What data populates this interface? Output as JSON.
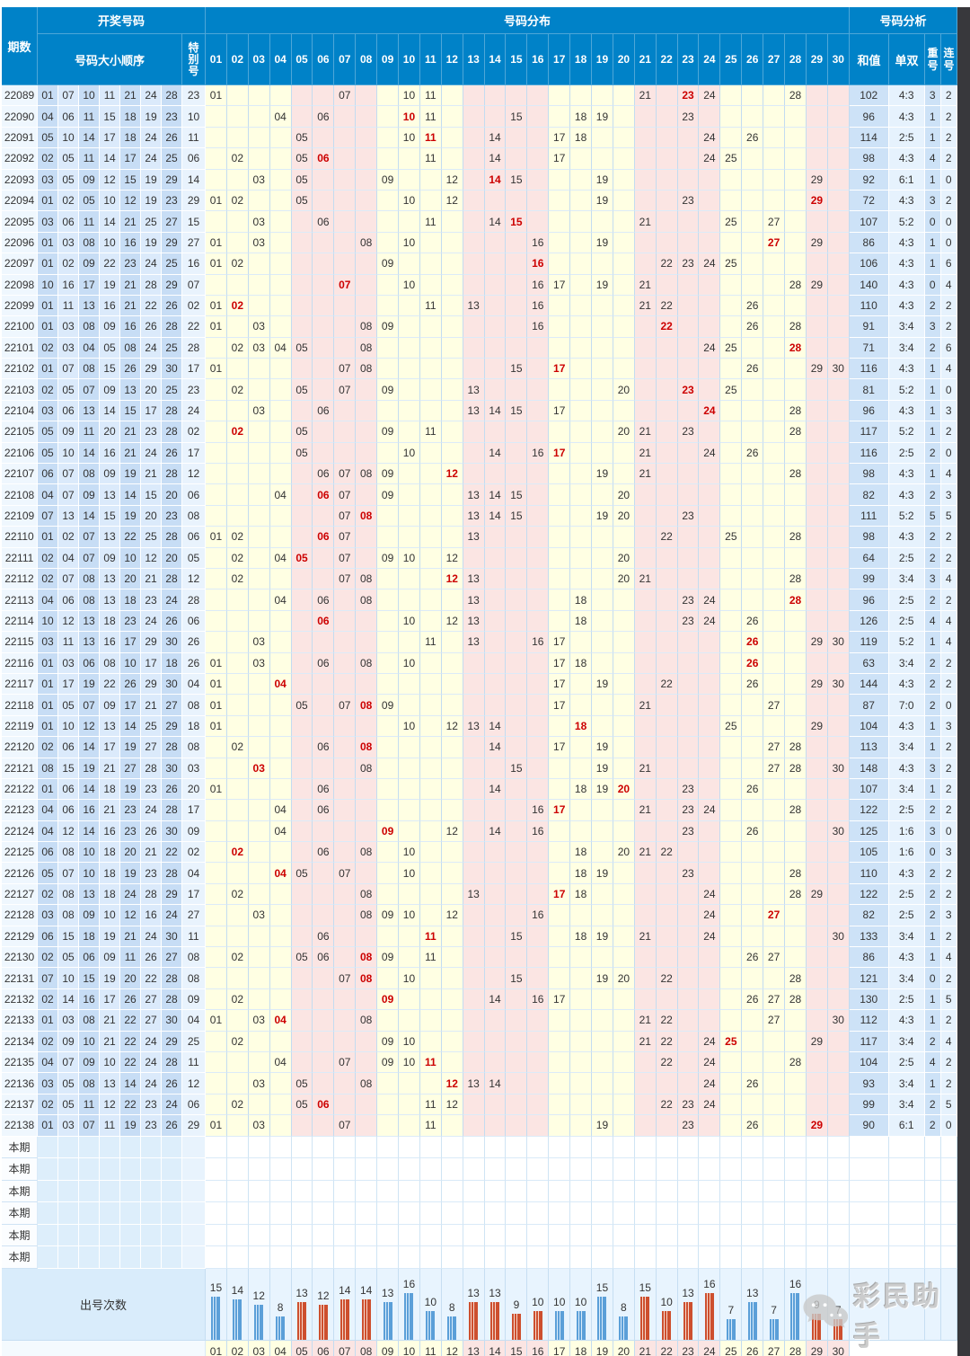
{
  "header": {
    "qishu": "期数",
    "kaijiang": "开奖号码",
    "daxiao": "号码大小顺序",
    "tebie": "特\n别\n号",
    "fenbu": "号码分布",
    "fenxi": "号码分析",
    "hezhi": "和值",
    "danshuang": "单双",
    "chonghao": "重\n号",
    "lianhao": "连\n号"
  },
  "dist_headers": [
    "01",
    "02",
    "03",
    "04",
    "05",
    "06",
    "07",
    "08",
    "09",
    "10",
    "11",
    "12",
    "13",
    "14",
    "15",
    "16",
    "17",
    "18",
    "19",
    "20",
    "21",
    "22",
    "23",
    "24",
    "25",
    "26",
    "27",
    "28",
    "29",
    "30"
  ],
  "rows": [
    {
      "p": "22089",
      "n": [
        "01",
        "07",
        "10",
        "11",
        "21",
        "24",
        "28"
      ],
      "s": "23",
      "sum": "102",
      "oe": "4:3",
      "rep": "3",
      "con": "2"
    },
    {
      "p": "22090",
      "n": [
        "04",
        "06",
        "11",
        "15",
        "18",
        "19",
        "23"
      ],
      "s": "10",
      "sum": "96",
      "oe": "4:3",
      "rep": "1",
      "con": "2"
    },
    {
      "p": "22091",
      "n": [
        "05",
        "10",
        "14",
        "17",
        "18",
        "24",
        "26"
      ],
      "s": "11",
      "sum": "114",
      "oe": "2:5",
      "rep": "1",
      "con": "2"
    },
    {
      "p": "22092",
      "n": [
        "02",
        "05",
        "11",
        "14",
        "17",
        "24",
        "25"
      ],
      "s": "06",
      "sum": "98",
      "oe": "4:3",
      "rep": "4",
      "con": "2"
    },
    {
      "p": "22093",
      "n": [
        "03",
        "05",
        "09",
        "12",
        "15",
        "19",
        "29"
      ],
      "s": "14",
      "sum": "92",
      "oe": "6:1",
      "rep": "1",
      "con": "0"
    },
    {
      "p": "22094",
      "n": [
        "01",
        "02",
        "05",
        "10",
        "12",
        "19",
        "23"
      ],
      "s": "29",
      "sum": "72",
      "oe": "4:3",
      "rep": "3",
      "con": "2"
    },
    {
      "p": "22095",
      "n": [
        "03",
        "06",
        "11",
        "14",
        "21",
        "25",
        "27"
      ],
      "s": "15",
      "sum": "107",
      "oe": "5:2",
      "rep": "0",
      "con": "0"
    },
    {
      "p": "22096",
      "n": [
        "01",
        "03",
        "08",
        "10",
        "16",
        "19",
        "29"
      ],
      "s": "27",
      "sum": "86",
      "oe": "4:3",
      "rep": "1",
      "con": "0"
    },
    {
      "p": "22097",
      "n": [
        "01",
        "02",
        "09",
        "22",
        "23",
        "24",
        "25"
      ],
      "s": "16",
      "sum": "106",
      "oe": "4:3",
      "rep": "1",
      "con": "6"
    },
    {
      "p": "22098",
      "n": [
        "10",
        "16",
        "17",
        "19",
        "21",
        "28",
        "29"
      ],
      "s": "07",
      "sum": "140",
      "oe": "4:3",
      "rep": "0",
      "con": "4"
    },
    {
      "p": "22099",
      "n": [
        "01",
        "11",
        "13",
        "16",
        "21",
        "22",
        "26"
      ],
      "s": "02",
      "sum": "110",
      "oe": "4:3",
      "rep": "2",
      "con": "2"
    },
    {
      "p": "22100",
      "n": [
        "01",
        "03",
        "08",
        "09",
        "16",
        "26",
        "28"
      ],
      "s": "22",
      "sum": "91",
      "oe": "3:4",
      "rep": "3",
      "con": "2"
    },
    {
      "p": "22101",
      "n": [
        "02",
        "03",
        "04",
        "05",
        "08",
        "24",
        "25"
      ],
      "s": "28",
      "sum": "71",
      "oe": "3:4",
      "rep": "2",
      "con": "6"
    },
    {
      "p": "22102",
      "n": [
        "01",
        "07",
        "08",
        "15",
        "26",
        "29",
        "30"
      ],
      "s": "17",
      "sum": "116",
      "oe": "4:3",
      "rep": "1",
      "con": "4"
    },
    {
      "p": "22103",
      "n": [
        "02",
        "05",
        "07",
        "09",
        "13",
        "20",
        "25"
      ],
      "s": "23",
      "sum": "81",
      "oe": "5:2",
      "rep": "1",
      "con": "0"
    },
    {
      "p": "22104",
      "n": [
        "03",
        "06",
        "13",
        "14",
        "15",
        "17",
        "28"
      ],
      "s": "24",
      "sum": "96",
      "oe": "4:3",
      "rep": "1",
      "con": "3"
    },
    {
      "p": "22105",
      "n": [
        "05",
        "09",
        "11",
        "20",
        "21",
        "23",
        "28"
      ],
      "s": "02",
      "sum": "117",
      "oe": "5:2",
      "rep": "1",
      "con": "2"
    },
    {
      "p": "22106",
      "n": [
        "05",
        "10",
        "14",
        "16",
        "21",
        "24",
        "26"
      ],
      "s": "17",
      "sum": "116",
      "oe": "2:5",
      "rep": "2",
      "con": "0"
    },
    {
      "p": "22107",
      "n": [
        "06",
        "07",
        "08",
        "09",
        "19",
        "21",
        "28"
      ],
      "s": "12",
      "sum": "98",
      "oe": "4:3",
      "rep": "1",
      "con": "4"
    },
    {
      "p": "22108",
      "n": [
        "04",
        "07",
        "09",
        "13",
        "14",
        "15",
        "20"
      ],
      "s": "06",
      "sum": "82",
      "oe": "4:3",
      "rep": "2",
      "con": "3"
    },
    {
      "p": "22109",
      "n": [
        "07",
        "13",
        "14",
        "15",
        "19",
        "20",
        "23"
      ],
      "s": "08",
      "sum": "111",
      "oe": "5:2",
      "rep": "5",
      "con": "5"
    },
    {
      "p": "22110",
      "n": [
        "01",
        "02",
        "07",
        "13",
        "22",
        "25",
        "28"
      ],
      "s": "06",
      "sum": "98",
      "oe": "4:3",
      "rep": "2",
      "con": "2"
    },
    {
      "p": "22111",
      "n": [
        "02",
        "04",
        "07",
        "09",
        "10",
        "12",
        "20"
      ],
      "s": "05",
      "sum": "64",
      "oe": "2:5",
      "rep": "2",
      "con": "2"
    },
    {
      "p": "22112",
      "n": [
        "02",
        "07",
        "08",
        "13",
        "20",
        "21",
        "28"
      ],
      "s": "12",
      "sum": "99",
      "oe": "3:4",
      "rep": "3",
      "con": "4"
    },
    {
      "p": "22113",
      "n": [
        "04",
        "06",
        "08",
        "13",
        "18",
        "23",
        "24"
      ],
      "s": "28",
      "sum": "96",
      "oe": "2:5",
      "rep": "2",
      "con": "2"
    },
    {
      "p": "22114",
      "n": [
        "10",
        "12",
        "13",
        "18",
        "23",
        "24",
        "26"
      ],
      "s": "06",
      "sum": "126",
      "oe": "2:5",
      "rep": "4",
      "con": "4"
    },
    {
      "p": "22115",
      "n": [
        "03",
        "11",
        "13",
        "16",
        "17",
        "29",
        "30"
      ],
      "s": "26",
      "sum": "119",
      "oe": "5:2",
      "rep": "1",
      "con": "4"
    },
    {
      "p": "22116",
      "n": [
        "01",
        "03",
        "06",
        "08",
        "10",
        "17",
        "18"
      ],
      "s": "26",
      "sum": "63",
      "oe": "3:4",
      "rep": "2",
      "con": "2"
    },
    {
      "p": "22117",
      "n": [
        "01",
        "17",
        "19",
        "22",
        "26",
        "29",
        "30"
      ],
      "s": "04",
      "sum": "144",
      "oe": "4:3",
      "rep": "2",
      "con": "2"
    },
    {
      "p": "22118",
      "n": [
        "01",
        "05",
        "07",
        "09",
        "17",
        "21",
        "27"
      ],
      "s": "08",
      "sum": "87",
      "oe": "7:0",
      "rep": "2",
      "con": "0"
    },
    {
      "p": "22119",
      "n": [
        "01",
        "10",
        "12",
        "13",
        "14",
        "25",
        "29"
      ],
      "s": "18",
      "sum": "104",
      "oe": "4:3",
      "rep": "1",
      "con": "3"
    },
    {
      "p": "22120",
      "n": [
        "02",
        "06",
        "14",
        "17",
        "19",
        "27",
        "28"
      ],
      "s": "08",
      "sum": "113",
      "oe": "3:4",
      "rep": "1",
      "con": "2"
    },
    {
      "p": "22121",
      "n": [
        "08",
        "15",
        "19",
        "21",
        "27",
        "28",
        "30"
      ],
      "s": "03",
      "sum": "148",
      "oe": "4:3",
      "rep": "3",
      "con": "2"
    },
    {
      "p": "22122",
      "n": [
        "01",
        "06",
        "14",
        "18",
        "19",
        "23",
        "26"
      ],
      "s": "20",
      "sum": "107",
      "oe": "3:4",
      "rep": "1",
      "con": "2"
    },
    {
      "p": "22123",
      "n": [
        "04",
        "06",
        "16",
        "21",
        "23",
        "24",
        "28"
      ],
      "s": "17",
      "sum": "122",
      "oe": "2:5",
      "rep": "2",
      "con": "2"
    },
    {
      "p": "22124",
      "n": [
        "04",
        "12",
        "14",
        "16",
        "23",
        "26",
        "30"
      ],
      "s": "09",
      "sum": "125",
      "oe": "1:6",
      "rep": "3",
      "con": "0"
    },
    {
      "p": "22125",
      "n": [
        "06",
        "08",
        "10",
        "18",
        "20",
        "21",
        "22"
      ],
      "s": "02",
      "sum": "105",
      "oe": "1:6",
      "rep": "0",
      "con": "3"
    },
    {
      "p": "22126",
      "n": [
        "05",
        "07",
        "10",
        "18",
        "19",
        "23",
        "28"
      ],
      "s": "04",
      "sum": "110",
      "oe": "4:3",
      "rep": "2",
      "con": "2"
    },
    {
      "p": "22127",
      "n": [
        "02",
        "08",
        "13",
        "18",
        "24",
        "28",
        "29"
      ],
      "s": "17",
      "sum": "122",
      "oe": "2:5",
      "rep": "2",
      "con": "2"
    },
    {
      "p": "22128",
      "n": [
        "03",
        "08",
        "09",
        "10",
        "12",
        "16",
        "24"
      ],
      "s": "27",
      "sum": "82",
      "oe": "2:5",
      "rep": "2",
      "con": "3"
    },
    {
      "p": "22129",
      "n": [
        "06",
        "15",
        "18",
        "19",
        "21",
        "24",
        "30"
      ],
      "s": "11",
      "sum": "133",
      "oe": "3:4",
      "rep": "1",
      "con": "2"
    },
    {
      "p": "22130",
      "n": [
        "02",
        "05",
        "06",
        "09",
        "11",
        "26",
        "27"
      ],
      "s": "08",
      "sum": "86",
      "oe": "4:3",
      "rep": "1",
      "con": "4"
    },
    {
      "p": "22131",
      "n": [
        "07",
        "10",
        "15",
        "19",
        "20",
        "22",
        "28"
      ],
      "s": "08",
      "sum": "121",
      "oe": "3:4",
      "rep": "0",
      "con": "2"
    },
    {
      "p": "22132",
      "n": [
        "02",
        "14",
        "16",
        "17",
        "26",
        "27",
        "28"
      ],
      "s": "09",
      "sum": "130",
      "oe": "2:5",
      "rep": "1",
      "con": "5"
    },
    {
      "p": "22133",
      "n": [
        "01",
        "03",
        "08",
        "21",
        "22",
        "27",
        "30"
      ],
      "s": "04",
      "sum": "112",
      "oe": "4:3",
      "rep": "1",
      "con": "2"
    },
    {
      "p": "22134",
      "n": [
        "02",
        "09",
        "10",
        "21",
        "22",
        "24",
        "29"
      ],
      "s": "25",
      "sum": "117",
      "oe": "3:4",
      "rep": "2",
      "con": "4"
    },
    {
      "p": "22135",
      "n": [
        "04",
        "07",
        "09",
        "10",
        "22",
        "24",
        "28"
      ],
      "s": "11",
      "sum": "104",
      "oe": "2:5",
      "rep": "4",
      "con": "2"
    },
    {
      "p": "22136",
      "n": [
        "03",
        "05",
        "08",
        "13",
        "14",
        "24",
        "26"
      ],
      "s": "12",
      "sum": "93",
      "oe": "3:4",
      "rep": "1",
      "con": "2"
    },
    {
      "p": "22137",
      "n": [
        "02",
        "05",
        "11",
        "12",
        "22",
        "23",
        "24"
      ],
      "s": "06",
      "sum": "99",
      "oe": "3:4",
      "rep": "2",
      "con": "5"
    },
    {
      "p": "22138",
      "n": [
        "01",
        "03",
        "07",
        "11",
        "19",
        "23",
        "26"
      ],
      "s": "29",
      "sum": "90",
      "oe": "6:1",
      "rep": "2",
      "con": "0"
    }
  ],
  "pending": {
    "label": "本期",
    "count": 6
  },
  "chart_data": {
    "type": "bar",
    "title": "出号次数",
    "categories": [
      "01",
      "02",
      "03",
      "04",
      "05",
      "06",
      "07",
      "08",
      "09",
      "10",
      "11",
      "12",
      "13",
      "14",
      "15",
      "16",
      "17",
      "18",
      "19",
      "20",
      "21",
      "22",
      "23",
      "24",
      "25",
      "26",
      "27",
      "28",
      "29",
      "30"
    ],
    "values": [
      15,
      14,
      12,
      8,
      13,
      12,
      14,
      14,
      13,
      16,
      10,
      8,
      13,
      13,
      9,
      10,
      10,
      10,
      15,
      8,
      15,
      10,
      13,
      16,
      7,
      13,
      7,
      16,
      9,
      7
    ],
    "bar_colors_rule": "blue for number-groups 01-04/09-12/17-20/25-28, red for 05-08/13-16/21-24/29-30",
    "ylim": [
      0,
      16
    ],
    "grid": true,
    "legend": "none"
  },
  "frequency_label": "出号次数",
  "footer_numbers": [
    "01",
    "02",
    "03",
    "04",
    "05",
    "06",
    "07",
    "08",
    "09",
    "10",
    "11",
    "12",
    "13",
    "14",
    "15",
    "16",
    "17",
    "18",
    "19",
    "20",
    "21",
    "22",
    "23",
    "24",
    "25",
    "26",
    "27",
    "28",
    "29",
    "30"
  ],
  "watermark": {
    "text": "彩民助手"
  },
  "colors": {
    "header_blue": "#0082c8",
    "group_cream": "#ffffe3",
    "group_pink": "#fbe5e3",
    "special_red": "#cc0000",
    "bar_blue": "#5b9fd8",
    "bar_red": "#cd4f2e"
  }
}
